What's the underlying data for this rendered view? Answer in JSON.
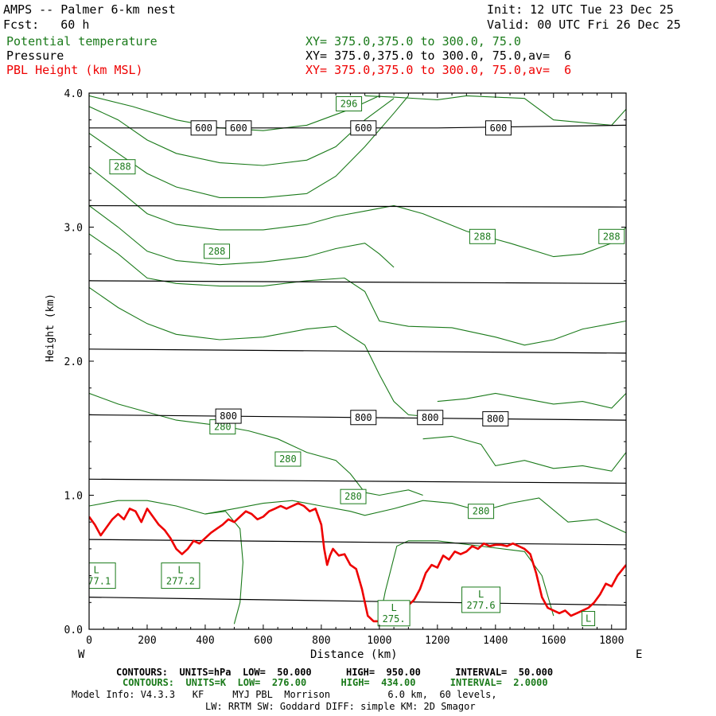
{
  "header": {
    "title": "AMPS -- Palmer 6-km nest",
    "fcst": "Fcst:   60 h",
    "init": "Init: 12 UTC Tue 23 Dec 25",
    "valid": "Valid: 00 UTC Fri 26 Dec 25",
    "theta_label": "Potential temperature",
    "theta_xy": "XY= 375.0,375.0 to 300.0, 75.0",
    "pres_label": "Pressure",
    "pres_xy": "XY= 375.0,375.0 to 300.0, 75.0,av=  6",
    "pbl_label": "PBL Height (km MSL)",
    "pbl_xy": "XY= 375.0,375.0 to 300.0, 75.0,av=  6"
  },
  "axes": {
    "ylabel": "Height (km)",
    "xlabel": "Distance (km)",
    "west": "W",
    "east": "E"
  },
  "footer": {
    "pres_contours": "CONTOURS:  UNITS=hPa  LOW=  50.000      HIGH=  950.00      INTERVAL=  50.000",
    "theta_contours": "CONTOURS:  UNITS=K  LOW=  276.00      HIGH=  434.00      INTERVAL=  2.0000",
    "model_info": "Model Info: V4.3.3   KF     MYJ PBL  Morrison          6.0 km,  60 levels,",
    "physics": "LW: RRTM SW: Goddard DIFF: simple KM: 2D Smagor"
  },
  "colors": {
    "theta": "#1a7a1a",
    "pressure": "#000000",
    "pbl": "#ee0000"
  },
  "chart_data": {
    "type": "line",
    "xlim": [
      0,
      1850
    ],
    "ylim": [
      0,
      4
    ],
    "x_ticks": [
      0,
      200,
      400,
      600,
      800,
      1000,
      1200,
      1400,
      1600,
      1800
    ],
    "y_ticks": [
      0.0,
      1.0,
      2.0,
      3.0,
      4.0
    ],
    "y_tick_labels": [
      "0.0",
      "1.0",
      "2.0",
      "3.0",
      "4.0"
    ],
    "pressure_lines": [
      {
        "name": "600",
        "points": [
          [
            0,
            3.74
          ],
          [
            600,
            3.74
          ],
          [
            1200,
            3.74
          ],
          [
            1850,
            3.76
          ]
        ]
      },
      {
        "x": [
          0,
          1850
        ],
        "y": [
          3.16,
          3.15
        ]
      },
      {
        "x": [
          0,
          1850
        ],
        "y": [
          2.6,
          2.58
        ]
      },
      {
        "x": [
          0,
          1850
        ],
        "y": [
          2.09,
          2.06
        ]
      },
      {
        "name": "800",
        "points": [
          [
            0,
            1.6
          ],
          [
            1850,
            1.56
          ]
        ]
      },
      {
        "x": [
          0,
          1850
        ],
        "y": [
          1.12,
          1.09
        ]
      },
      {
        "x": [
          0,
          1850
        ],
        "y": [
          0.67,
          0.63
        ]
      },
      {
        "x": [
          0,
          1850
        ],
        "y": [
          0.24,
          0.18
        ]
      }
    ],
    "pressure_labels": [
      {
        "text": "600",
        "x": 395,
        "y": 3.74
      },
      {
        "text": "600",
        "x": 515,
        "y": 3.74
      },
      {
        "text": "600",
        "x": 945,
        "y": 3.74
      },
      {
        "text": "600",
        "x": 1410,
        "y": 3.74
      },
      {
        "text": "800",
        "x": 480,
        "y": 1.59
      },
      {
        "text": "800",
        "x": 945,
        "y": 1.58
      },
      {
        "text": "800",
        "x": 1175,
        "y": 1.58
      },
      {
        "text": "800",
        "x": 1400,
        "y": 1.57
      }
    ],
    "theta_contours": [
      {
        "points": [
          [
            0,
            3.98
          ],
          [
            150,
            3.9
          ],
          [
            300,
            3.8
          ],
          [
            450,
            3.74
          ],
          [
            600,
            3.72
          ],
          [
            750,
            3.76
          ],
          [
            900,
            3.88
          ],
          [
            1000,
            3.98
          ]
        ]
      },
      {
        "points": [
          [
            950,
            3.98
          ],
          [
            1050,
            3.97
          ],
          [
            1200,
            3.95
          ],
          [
            1300,
            3.98
          ],
          [
            1500,
            3.96
          ],
          [
            1600,
            3.8
          ],
          [
            1700,
            3.78
          ],
          [
            1800,
            3.76
          ],
          [
            1850,
            3.88
          ]
        ]
      },
      {
        "points": [
          [
            0,
            3.9
          ],
          [
            100,
            3.8
          ],
          [
            200,
            3.65
          ],
          [
            300,
            3.55
          ],
          [
            450,
            3.48
          ],
          [
            600,
            3.46
          ],
          [
            750,
            3.5
          ],
          [
            850,
            3.6
          ],
          [
            950,
            3.8
          ],
          [
            1050,
            3.96
          ]
        ]
      },
      {
        "points": [
          [
            0,
            3.7
          ],
          [
            100,
            3.55
          ],
          [
            200,
            3.4
          ],
          [
            300,
            3.3
          ],
          [
            450,
            3.22
          ],
          [
            600,
            3.22
          ],
          [
            750,
            3.25
          ],
          [
            850,
            3.38
          ],
          [
            950,
            3.6
          ],
          [
            1050,
            3.85
          ],
          [
            1100,
            3.98
          ]
        ]
      },
      {
        "points": [
          [
            0,
            3.45
          ],
          [
            100,
            3.28
          ],
          [
            200,
            3.1
          ],
          [
            300,
            3.02
          ],
          [
            450,
            2.98
          ],
          [
            600,
            2.98
          ],
          [
            750,
            3.02
          ],
          [
            850,
            3.08
          ],
          [
            950,
            3.12
          ],
          [
            1050,
            3.16
          ],
          [
            1150,
            3.1
          ],
          [
            1300,
            2.97
          ],
          [
            1450,
            2.88
          ],
          [
            1600,
            2.78
          ],
          [
            1700,
            2.8
          ],
          [
            1800,
            2.88
          ],
          [
            1850,
            3.0
          ]
        ]
      },
      {
        "points": [
          [
            0,
            3.16
          ],
          [
            100,
            3.0
          ],
          [
            200,
            2.82
          ],
          [
            300,
            2.75
          ],
          [
            450,
            2.72
          ],
          [
            600,
            2.74
          ],
          [
            750,
            2.78
          ],
          [
            850,
            2.84
          ],
          [
            950,
            2.88
          ],
          [
            1000,
            2.8
          ],
          [
            1050,
            2.7
          ]
        ]
      },
      {
        "points": [
          [
            0,
            2.95
          ],
          [
            100,
            2.8
          ],
          [
            200,
            2.62
          ],
          [
            300,
            2.58
          ],
          [
            450,
            2.56
          ],
          [
            600,
            2.56
          ],
          [
            750,
            2.6
          ],
          [
            880,
            2.62
          ],
          [
            950,
            2.52
          ],
          [
            1000,
            2.3
          ],
          [
            1100,
            2.26
          ],
          [
            1250,
            2.25
          ],
          [
            1400,
            2.18
          ],
          [
            1500,
            2.12
          ],
          [
            1600,
            2.16
          ],
          [
            1700,
            2.24
          ],
          [
            1800,
            2.28
          ],
          [
            1850,
            2.3
          ]
        ]
      },
      {
        "points": [
          [
            0,
            2.55
          ],
          [
            100,
            2.4
          ],
          [
            200,
            2.28
          ],
          [
            300,
            2.2
          ],
          [
            450,
            2.16
          ],
          [
            600,
            2.18
          ],
          [
            750,
            2.24
          ],
          [
            850,
            2.26
          ],
          [
            950,
            2.12
          ],
          [
            1000,
            1.9
          ],
          [
            1050,
            1.7
          ],
          [
            1100,
            1.6
          ],
          [
            1200,
            1.58
          ]
        ]
      },
      {
        "points": [
          [
            1200,
            1.7
          ],
          [
            1300,
            1.72
          ],
          [
            1400,
            1.76
          ],
          [
            1500,
            1.72
          ],
          [
            1600,
            1.68
          ],
          [
            1700,
            1.7
          ],
          [
            1800,
            1.65
          ],
          [
            1850,
            1.76
          ]
        ]
      },
      {
        "points": [
          [
            0,
            1.76
          ],
          [
            100,
            1.68
          ],
          [
            200,
            1.62
          ],
          [
            300,
            1.56
          ],
          [
            450,
            1.52
          ],
          [
            550,
            1.48
          ],
          [
            650,
            1.42
          ],
          [
            750,
            1.32
          ],
          [
            850,
            1.26
          ],
          [
            900,
            1.16
          ],
          [
            950,
            1.02
          ],
          [
            1000,
            1.0
          ],
          [
            1100,
            1.04
          ],
          [
            1150,
            1.0
          ]
        ]
      },
      {
        "points": [
          [
            1150,
            1.42
          ],
          [
            1250,
            1.44
          ],
          [
            1350,
            1.38
          ],
          [
            1400,
            1.22
          ],
          [
            1500,
            1.26
          ],
          [
            1600,
            1.2
          ],
          [
            1700,
            1.22
          ],
          [
            1800,
            1.18
          ],
          [
            1850,
            1.32
          ]
        ]
      },
      {
        "points": [
          [
            0,
            0.92
          ],
          [
            100,
            0.96
          ],
          [
            200,
            0.96
          ],
          [
            300,
            0.92
          ],
          [
            400,
            0.86
          ],
          [
            500,
            0.9
          ],
          [
            600,
            0.94
          ],
          [
            700,
            0.96
          ],
          [
            800,
            0.92
          ],
          [
            900,
            0.88
          ],
          [
            950,
            0.85
          ],
          [
            1050,
            0.9
          ],
          [
            1150,
            0.96
          ],
          [
            1250,
            0.94
          ],
          [
            1350,
            0.88
          ],
          [
            1450,
            0.94
          ],
          [
            1550,
            0.98
          ],
          [
            1650,
            0.8
          ],
          [
            1750,
            0.82
          ],
          [
            1850,
            0.72
          ]
        ]
      },
      {
        "points": [
          [
            500,
            0.04
          ],
          [
            520,
            0.2
          ],
          [
            530,
            0.5
          ],
          [
            520,
            0.75
          ],
          [
            470,
            0.88
          ],
          [
            400,
            0.86
          ]
        ]
      },
      {
        "points": [
          [
            1000,
            0.06
          ],
          [
            1020,
            0.28
          ],
          [
            1060,
            0.62
          ],
          [
            1100,
            0.66
          ],
          [
            1200,
            0.66
          ],
          [
            1350,
            0.62
          ],
          [
            1500,
            0.58
          ],
          [
            1560,
            0.4
          ],
          [
            1600,
            0.1
          ]
        ]
      }
    ],
    "theta_labels": [
      {
        "text": "296",
        "x": 895,
        "y": 3.92
      },
      {
        "text": "288",
        "x": 115,
        "y": 3.45
      },
      {
        "text": "288",
        "x": 440,
        "y": 2.82
      },
      {
        "text": "288",
        "x": 1355,
        "y": 2.93
      },
      {
        "text": "288",
        "x": 1800,
        "y": 2.93
      },
      {
        "text": "280",
        "x": 460,
        "y": 1.51
      },
      {
        "text": "280",
        "x": 685,
        "y": 1.27
      },
      {
        "text": "280",
        "x": 910,
        "y": 0.99
      },
      {
        "text": "280",
        "x": 1350,
        "y": 0.88
      },
      {
        "text": "L\n277.1",
        "x": 25,
        "y": 0.4
      },
      {
        "text": "L\n277.2",
        "x": 315,
        "y": 0.4
      },
      {
        "text": "L\n275.",
        "x": 1050,
        "y": 0.12
      },
      {
        "text": "L\n277.6",
        "x": 1350,
        "y": 0.22
      },
      {
        "text": "L",
        "x": 1720,
        "y": 0.08
      }
    ],
    "pbl_height": {
      "x": [
        0,
        20,
        40,
        60,
        80,
        100,
        120,
        140,
        160,
        180,
        200,
        220,
        240,
        260,
        280,
        300,
        320,
        340,
        360,
        380,
        400,
        420,
        440,
        460,
        480,
        500,
        520,
        540,
        560,
        580,
        600,
        620,
        640,
        660,
        680,
        700,
        720,
        740,
        760,
        780,
        800,
        810,
        820,
        830,
        840,
        860,
        880,
        900,
        920,
        940,
        960,
        980,
        1000,
        1020,
        1040,
        1060,
        1080,
        1100,
        1120,
        1140,
        1160,
        1180,
        1200,
        1220,
        1240,
        1260,
        1280,
        1300,
        1320,
        1340,
        1360,
        1380,
        1400,
        1420,
        1440,
        1460,
        1480,
        1500,
        1520,
        1540,
        1560,
        1580,
        1600,
        1620,
        1640,
        1660,
        1680,
        1700,
        1720,
        1740,
        1760,
        1780,
        1800,
        1820,
        1850
      ],
      "y": [
        0.84,
        0.78,
        0.7,
        0.76,
        0.82,
        0.86,
        0.82,
        0.9,
        0.88,
        0.8,
        0.9,
        0.84,
        0.78,
        0.74,
        0.68,
        0.6,
        0.56,
        0.6,
        0.66,
        0.64,
        0.68,
        0.72,
        0.75,
        0.78,
        0.82,
        0.8,
        0.84,
        0.88,
        0.86,
        0.82,
        0.84,
        0.88,
        0.9,
        0.92,
        0.9,
        0.92,
        0.94,
        0.92,
        0.88,
        0.9,
        0.78,
        0.6,
        0.48,
        0.55,
        0.6,
        0.55,
        0.56,
        0.48,
        0.45,
        0.3,
        0.1,
        0.06,
        0.06,
        0.1,
        0.12,
        0.08,
        0.12,
        0.18,
        0.22,
        0.3,
        0.42,
        0.48,
        0.46,
        0.55,
        0.52,
        0.58,
        0.56,
        0.58,
        0.62,
        0.6,
        0.64,
        0.62,
        0.63,
        0.63,
        0.62,
        0.64,
        0.62,
        0.6,
        0.56,
        0.42,
        0.24,
        0.16,
        0.14,
        0.12,
        0.14,
        0.1,
        0.12,
        0.14,
        0.16,
        0.2,
        0.26,
        0.34,
        0.32,
        0.4,
        0.48
      ]
    }
  }
}
